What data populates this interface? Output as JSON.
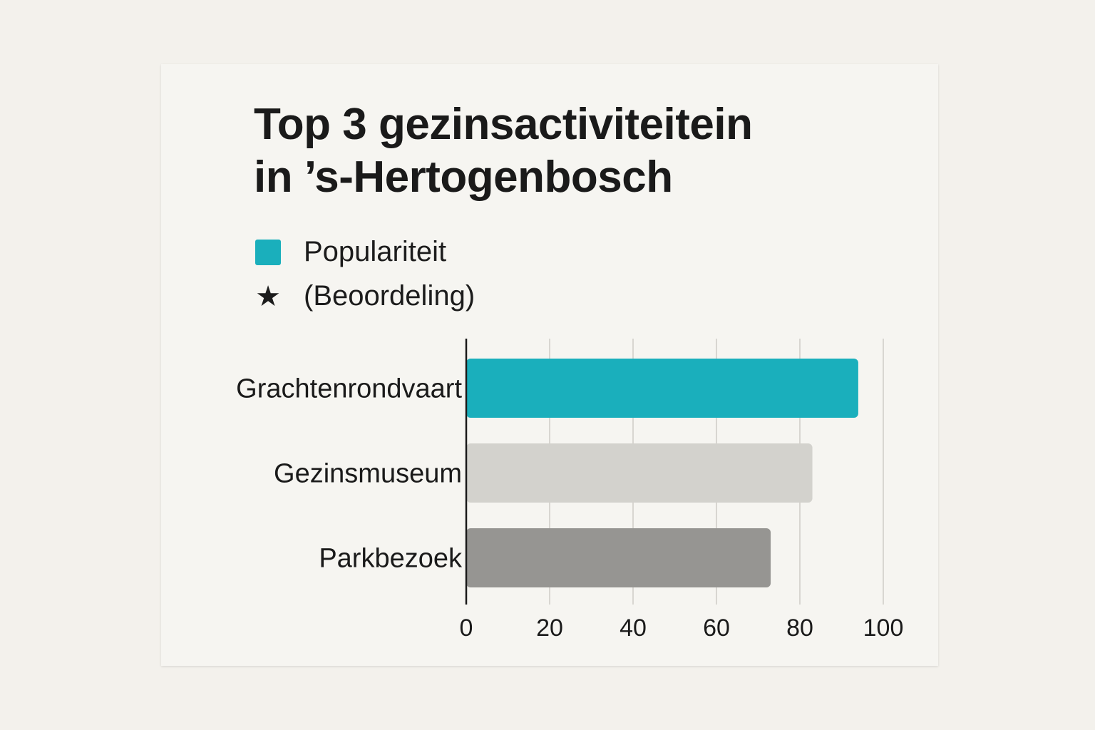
{
  "chart_data": {
    "type": "bar",
    "orientation": "horizontal",
    "title": "Top 3 gezinsactiviteitein in ’s-Hertogenbosch",
    "title_lines": [
      "Top 3 gezinsactiviteitein",
      "in ’s-Hertogenbosch"
    ],
    "categories": [
      "Grachtenrondvaart",
      "Gezinsmuseum",
      "Parkbezoek"
    ],
    "values": [
      94,
      83,
      73
    ],
    "bar_colors": [
      "#1aafbc",
      "#d3d2cd",
      "#969592"
    ],
    "legend": [
      {
        "label": "Populariteit",
        "marker": "square",
        "color": "#1aafbc"
      },
      {
        "label": "(Beoordeling)",
        "marker": "star-icon",
        "color": "#1a1a1a"
      }
    ],
    "legend_position": "top-left",
    "xlim": [
      0,
      100
    ],
    "xticks": [
      0,
      20,
      40,
      60,
      80,
      100
    ],
    "xlabel": "",
    "ylabel": "",
    "grid": true
  }
}
